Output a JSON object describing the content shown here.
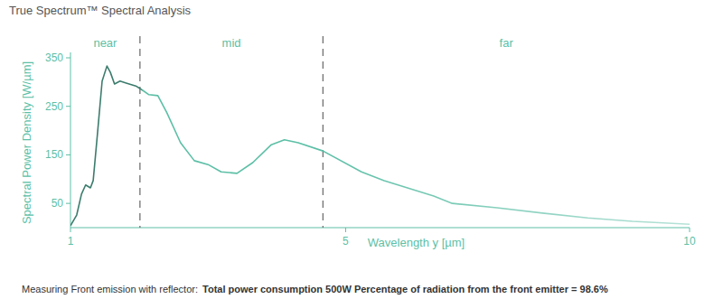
{
  "chart_data": {
    "type": "line",
    "title": "True Spectrum™ Spectral Analysis",
    "x_label": "Wavelength y [µm]",
    "y_label": "Spectral Power Density [W/µm]",
    "x": [
      1.0,
      1.09,
      1.16,
      1.22,
      1.29,
      1.33,
      1.39,
      1.46,
      1.53,
      1.58,
      1.64,
      1.72,
      1.81,
      1.95,
      2.05,
      2.14,
      2.27,
      2.4,
      2.6,
      2.8,
      3.0,
      3.19,
      3.42,
      3.65,
      3.92,
      4.11,
      4.31,
      4.67,
      5.23,
      5.56,
      6.28,
      6.55,
      7.2,
      7.86,
      8.52,
      9.17,
      10.0
    ],
    "series": [
      {
        "color": "#5cbfa6",
        "values": [
          4,
          26,
          69,
          88,
          82,
          97,
          190,
          302,
          333,
          320,
          296,
          302,
          298,
          292,
          283,
          274,
          272,
          237,
          175,
          138,
          130,
          115,
          112,
          134,
          171,
          181,
          175,
          158,
          115,
          97,
          65,
          50,
          41,
          30,
          20,
          13,
          7
        ]
      }
    ],
    "xlim": [
      1,
      10
    ],
    "ylim": [
      0,
      350
    ],
    "xticks": [
      1,
      5,
      10
    ],
    "yticks": [
      50,
      150,
      250,
      350
    ],
    "grid": false,
    "regions": [
      {
        "label": "near",
        "from": 1,
        "to": 2.01
      },
      {
        "label": "mid",
        "from": 2.01,
        "to": 4.67
      },
      {
        "label": "far",
        "from": 4.67,
        "to": 10
      }
    ],
    "footnote": "Measuring Front emission with reflector:",
    "footnote_bold": "Total power consumption 500W Percentage of radiation from the front emitter = 98.6%"
  }
}
